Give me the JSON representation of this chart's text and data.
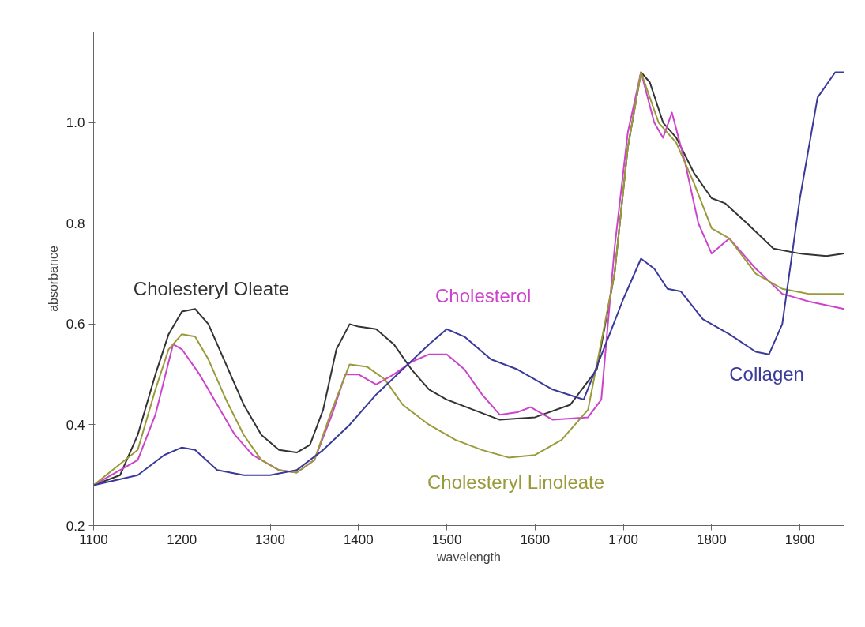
{
  "chart_data": {
    "type": "line",
    "xlabel": "wavelength",
    "ylabel": "absorbance",
    "xlim": [
      1100,
      1950
    ],
    "ylim": [
      0.2,
      1.18
    ],
    "xticks": [
      1100,
      1200,
      1300,
      1400,
      1500,
      1600,
      1700,
      1800,
      1900
    ],
    "yticks": [
      {
        "value": 0.2,
        "label": "0.2"
      },
      {
        "value": 0.4,
        "label": "0.4"
      },
      {
        "value": 0.6,
        "label": "0.6"
      },
      {
        "value": 0.8,
        "label": "0.8"
      },
      {
        "value": 1.0,
        "label": "1.0"
      }
    ],
    "grid": false,
    "legend": false,
    "line_style": "solid",
    "series": [
      {
        "name": "Cholesteryl Oleate",
        "color": "#333333",
        "x": [
          1100,
          1130,
          1150,
          1170,
          1185,
          1200,
          1215,
          1230,
          1250,
          1270,
          1290,
          1310,
          1330,
          1345,
          1360,
          1375,
          1390,
          1400,
          1420,
          1440,
          1460,
          1480,
          1500,
          1530,
          1560,
          1600,
          1640,
          1670,
          1690,
          1705,
          1720,
          1730,
          1745,
          1760,
          1780,
          1800,
          1815,
          1840,
          1870,
          1900,
          1930,
          1950
        ],
        "values": [
          0.28,
          0.3,
          0.38,
          0.5,
          0.58,
          0.625,
          0.63,
          0.6,
          0.52,
          0.44,
          0.38,
          0.35,
          0.345,
          0.36,
          0.43,
          0.55,
          0.6,
          0.595,
          0.59,
          0.56,
          0.51,
          0.47,
          0.45,
          0.43,
          0.41,
          0.415,
          0.44,
          0.51,
          0.7,
          0.95,
          1.1,
          1.08,
          1.0,
          0.97,
          0.9,
          0.85,
          0.84,
          0.8,
          0.75,
          0.74,
          0.735,
          0.74
        ]
      },
      {
        "name": "Cholesterol",
        "color": "#cc44cc",
        "x": [
          1100,
          1150,
          1170,
          1190,
          1200,
          1220,
          1240,
          1260,
          1280,
          1310,
          1330,
          1350,
          1370,
          1385,
          1400,
          1420,
          1440,
          1460,
          1480,
          1500,
          1520,
          1540,
          1560,
          1580,
          1595,
          1620,
          1660,
          1675,
          1690,
          1705,
          1720,
          1735,
          1745,
          1755,
          1770,
          1785,
          1800,
          1820,
          1850,
          1880,
          1910,
          1950
        ],
        "values": [
          0.28,
          0.33,
          0.42,
          0.56,
          0.55,
          0.5,
          0.44,
          0.38,
          0.34,
          0.31,
          0.305,
          0.33,
          0.42,
          0.5,
          0.5,
          0.48,
          0.5,
          0.525,
          0.54,
          0.54,
          0.51,
          0.46,
          0.42,
          0.425,
          0.435,
          0.41,
          0.415,
          0.45,
          0.75,
          0.98,
          1.1,
          1.0,
          0.97,
          1.02,
          0.92,
          0.8,
          0.74,
          0.77,
          0.71,
          0.66,
          0.645,
          0.63
        ]
      },
      {
        "name": "Cholesteryl Linoleate",
        "color": "#9a9a3a",
        "x": [
          1100,
          1150,
          1170,
          1185,
          1200,
          1215,
          1230,
          1250,
          1270,
          1290,
          1310,
          1330,
          1350,
          1370,
          1390,
          1410,
          1430,
          1450,
          1480,
          1510,
          1540,
          1570,
          1600,
          1630,
          1660,
          1690,
          1705,
          1720,
          1740,
          1760,
          1780,
          1800,
          1820,
          1850,
          1880,
          1910,
          1950
        ],
        "values": [
          0.28,
          0.35,
          0.47,
          0.55,
          0.58,
          0.575,
          0.53,
          0.45,
          0.38,
          0.33,
          0.31,
          0.305,
          0.33,
          0.43,
          0.52,
          0.515,
          0.49,
          0.44,
          0.4,
          0.37,
          0.35,
          0.335,
          0.34,
          0.37,
          0.43,
          0.7,
          0.95,
          1.1,
          1.0,
          0.96,
          0.88,
          0.79,
          0.77,
          0.7,
          0.67,
          0.66,
          0.66
        ]
      },
      {
        "name": "Collagen",
        "color": "#3a3a9a",
        "x": [
          1100,
          1150,
          1180,
          1200,
          1215,
          1240,
          1270,
          1300,
          1330,
          1360,
          1390,
          1420,
          1450,
          1480,
          1500,
          1520,
          1550,
          1580,
          1620,
          1655,
          1680,
          1700,
          1720,
          1735,
          1750,
          1765,
          1790,
          1820,
          1850,
          1865,
          1880,
          1900,
          1920,
          1940,
          1950
        ],
        "values": [
          0.28,
          0.3,
          0.34,
          0.355,
          0.35,
          0.31,
          0.3,
          0.3,
          0.31,
          0.35,
          0.4,
          0.46,
          0.51,
          0.56,
          0.59,
          0.575,
          0.53,
          0.51,
          0.47,
          0.45,
          0.56,
          0.65,
          0.73,
          0.71,
          0.67,
          0.665,
          0.61,
          0.58,
          0.545,
          0.54,
          0.6,
          0.85,
          1.05,
          1.1,
          1.1
        ]
      }
    ]
  }
}
